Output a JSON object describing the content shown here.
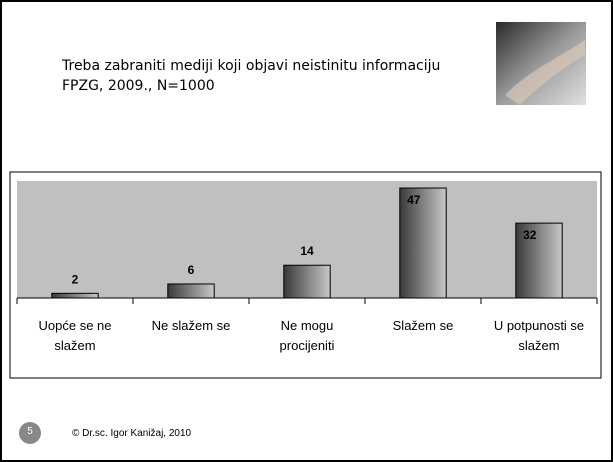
{
  "chart_data": {
    "type": "bar",
    "title": "Treba zabraniti mediji koji objavi neistinitu informaciju",
    "subtitle": "FPZG, 2009., N=1000",
    "categories": [
      "Uopće se ne slažem",
      "Ne slažem se",
      "Ne mogu procijeniti",
      "Slažem se",
      "U potpunosti se slažem"
    ],
    "values": [
      2,
      6,
      14,
      47,
      32
    ],
    "ylim": [
      0,
      50
    ]
  },
  "footer": {
    "slide_number": "5",
    "text": "© Dr.sc. Igor Kanižaj, 2010"
  }
}
